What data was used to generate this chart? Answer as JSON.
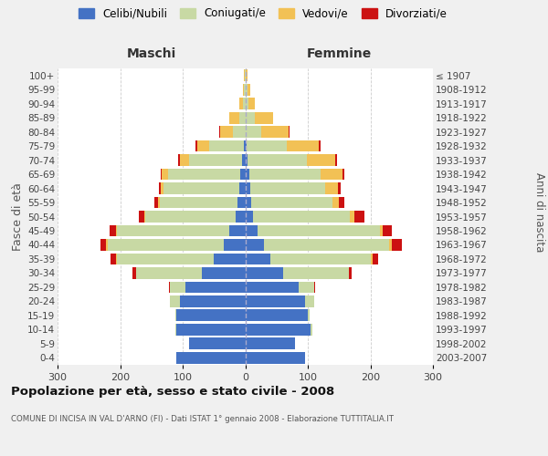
{
  "age_groups": [
    "0-4",
    "5-9",
    "10-14",
    "15-19",
    "20-24",
    "25-29",
    "30-34",
    "35-39",
    "40-44",
    "45-49",
    "50-54",
    "55-59",
    "60-64",
    "65-69",
    "70-74",
    "75-79",
    "80-84",
    "85-89",
    "90-94",
    "95-99",
    "100+"
  ],
  "birth_years": [
    "2003-2007",
    "1998-2002",
    "1993-1997",
    "1988-1992",
    "1983-1987",
    "1978-1982",
    "1973-1977",
    "1968-1972",
    "1963-1967",
    "1958-1962",
    "1953-1957",
    "1948-1952",
    "1943-1947",
    "1938-1942",
    "1933-1937",
    "1928-1932",
    "1923-1927",
    "1918-1922",
    "1913-1917",
    "1908-1912",
    "≤ 1907"
  ],
  "colors": {
    "celibe": "#4472C4",
    "coniugato": "#c8d9a4",
    "vedovo": "#f2c155",
    "divorziato": "#cc1111"
  },
  "males": {
    "celibe": [
      110,
      90,
      110,
      110,
      105,
      95,
      70,
      50,
      35,
      25,
      15,
      12,
      10,
      8,
      5,
      2,
      0,
      0,
      0,
      0,
      0
    ],
    "coniugato": [
      0,
      0,
      2,
      2,
      15,
      25,
      105,
      155,
      185,
      180,
      145,
      125,
      120,
      115,
      85,
      55,
      20,
      10,
      4,
      2,
      1
    ],
    "vedovo": [
      0,
      0,
      0,
      0,
      0,
      0,
      0,
      2,
      2,
      2,
      2,
      3,
      5,
      10,
      15,
      20,
      20,
      15,
      5,
      2,
      1
    ],
    "divorziato": [
      0,
      0,
      0,
      0,
      0,
      2,
      5,
      8,
      10,
      10,
      8,
      5,
      3,
      2,
      2,
      2,
      1,
      0,
      0,
      0,
      0
    ]
  },
  "females": {
    "nubile": [
      95,
      80,
      105,
      100,
      95,
      85,
      60,
      40,
      30,
      20,
      12,
      10,
      8,
      6,
      4,
      2,
      0,
      0,
      0,
      0,
      0
    ],
    "coniugata": [
      0,
      0,
      2,
      3,
      15,
      25,
      105,
      160,
      200,
      195,
      155,
      130,
      120,
      115,
      95,
      65,
      25,
      15,
      5,
      3,
      1
    ],
    "vedova": [
      0,
      0,
      0,
      0,
      0,
      0,
      0,
      3,
      5,
      5,
      8,
      10,
      20,
      35,
      45,
      50,
      45,
      30,
      10,
      5,
      2
    ],
    "divorziata": [
      0,
      0,
      0,
      0,
      0,
      2,
      5,
      10,
      15,
      15,
      15,
      8,
      4,
      3,
      3,
      3,
      1,
      0,
      0,
      0,
      0
    ]
  },
  "title": "Popolazione per età, sesso e stato civile - 2008",
  "subtitle": "COMUNE DI INCISA IN VAL D'ARNO (FI) - Dati ISTAT 1° gennaio 2008 - Elaborazione TUTTITALIA.IT",
  "xlabel_left": "Maschi",
  "xlabel_right": "Femmine",
  "ylabel_left": "Fasce di età",
  "ylabel_right": "Anni di nascita",
  "xlim": 300,
  "bg_color": "#f0f0f0",
  "plot_bg": "#ffffff",
  "grid_color": "#cccccc"
}
